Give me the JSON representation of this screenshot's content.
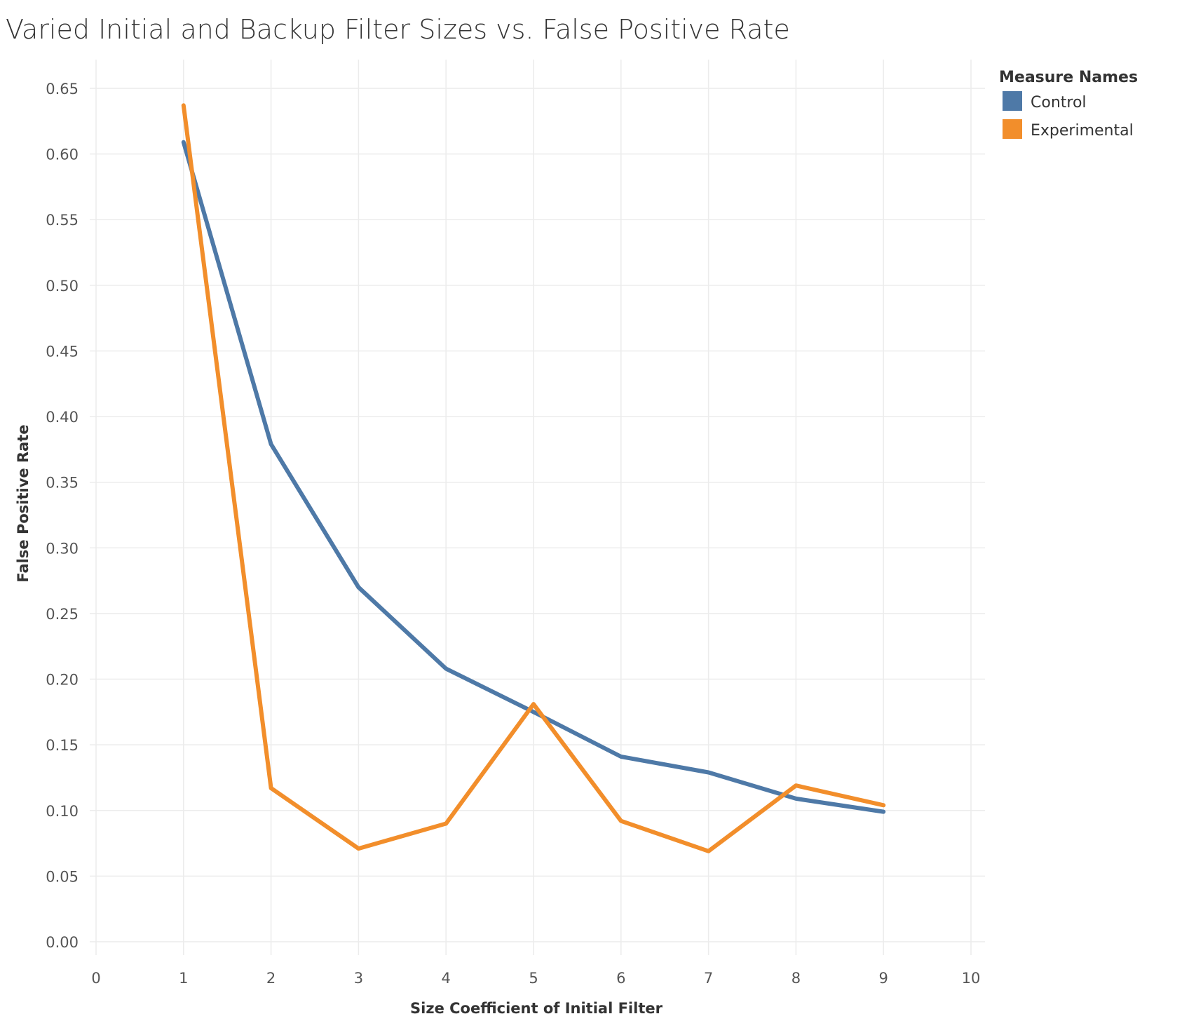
{
  "chart_data": {
    "type": "line",
    "title": "Varied Initial and Backup Filter Sizes vs. False Positive Rate",
    "xlabel": "Size Coefficient of Initial Filter",
    "ylabel": "False Positive Rate",
    "xlim": [
      0,
      10
    ],
    "ylim": [
      0,
      0.65
    ],
    "x_ticks": [
      "0",
      "1",
      "2",
      "3",
      "4",
      "5",
      "6",
      "7",
      "8",
      "9",
      "10"
    ],
    "y_ticks": [
      "0.00",
      "0.05",
      "0.10",
      "0.15",
      "0.20",
      "0.25",
      "0.30",
      "0.35",
      "0.40",
      "0.45",
      "0.50",
      "0.55",
      "0.60",
      "0.65"
    ],
    "grid": true,
    "legend": {
      "title": "Measure Names",
      "position": "top-right"
    },
    "x": [
      1,
      2,
      3,
      4,
      5,
      6,
      7,
      8,
      9
    ],
    "series": [
      {
        "name": "Control",
        "color": "#4e79a7",
        "values": [
          0.609,
          0.379,
          0.27,
          0.208,
          0.175,
          0.141,
          0.129,
          0.109,
          0.099
        ]
      },
      {
        "name": "Experimental",
        "color": "#f28e2b",
        "values": [
          0.637,
          0.117,
          0.071,
          0.09,
          0.181,
          0.092,
          0.069,
          0.119,
          0.104
        ]
      }
    ]
  }
}
